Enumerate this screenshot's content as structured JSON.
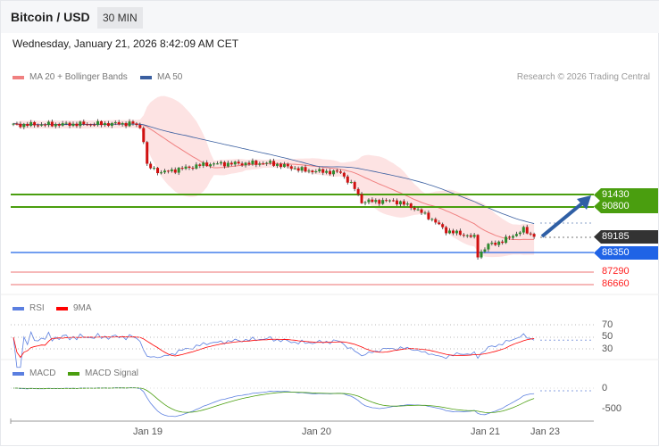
{
  "header": {
    "title": "Bitcoin / USD",
    "timeframe": "30 MIN"
  },
  "datetime": "Wednesday, January 21, 2026 8:42:09 AM CET",
  "legend": {
    "ma20": "MA 20 + Bollinger Bands",
    "ma50": "MA 50",
    "credit": "Research © 2026 Trading Central"
  },
  "levels": {
    "r2": "91430",
    "r1": "90800",
    "last": "89185",
    "pivot": "88350",
    "s1": "87290",
    "s2": "86660"
  },
  "colors": {
    "green": "#4a9e0f",
    "blue": "#1f63e6",
    "dark": "#333333",
    "red": "#ff2020",
    "up": "#2e8b2e",
    "down": "#d01010",
    "ma20": "#f08080",
    "ma50": "#3a5fa0"
  },
  "rsi": {
    "label": "RSI",
    "ma_label": "9MA",
    "ticks": [
      "70",
      "50",
      "30"
    ]
  },
  "macd": {
    "label": "MACD",
    "signal_label": "MACD Signal",
    "ticks": [
      "0",
      "-500"
    ]
  },
  "xaxis": [
    "Jan 19",
    "Jan 20",
    "Jan 21",
    "Jan 23"
  ],
  "chart_data": {
    "type": "candlestick",
    "price_waypoints": [
      [
        0,
        95130
      ],
      [
        34,
        95200
      ],
      [
        36,
        95000
      ],
      [
        37,
        94300
      ],
      [
        38,
        92946
      ],
      [
        42,
        92600
      ],
      [
        55,
        93050
      ],
      [
        73,
        93100
      ],
      [
        83,
        92700
      ],
      [
        93,
        92600
      ],
      [
        97,
        91750
      ],
      [
        99,
        91050
      ],
      [
        108,
        91100
      ],
      [
        113,
        90800
      ],
      [
        118,
        90250
      ],
      [
        123,
        89500
      ],
      [
        128,
        89300
      ],
      [
        131,
        89150
      ],
      [
        132,
        88200
      ],
      [
        135,
        88750
      ],
      [
        139,
        88950
      ],
      [
        145,
        89560
      ],
      [
        148,
        89185
      ]
    ]
  }
}
